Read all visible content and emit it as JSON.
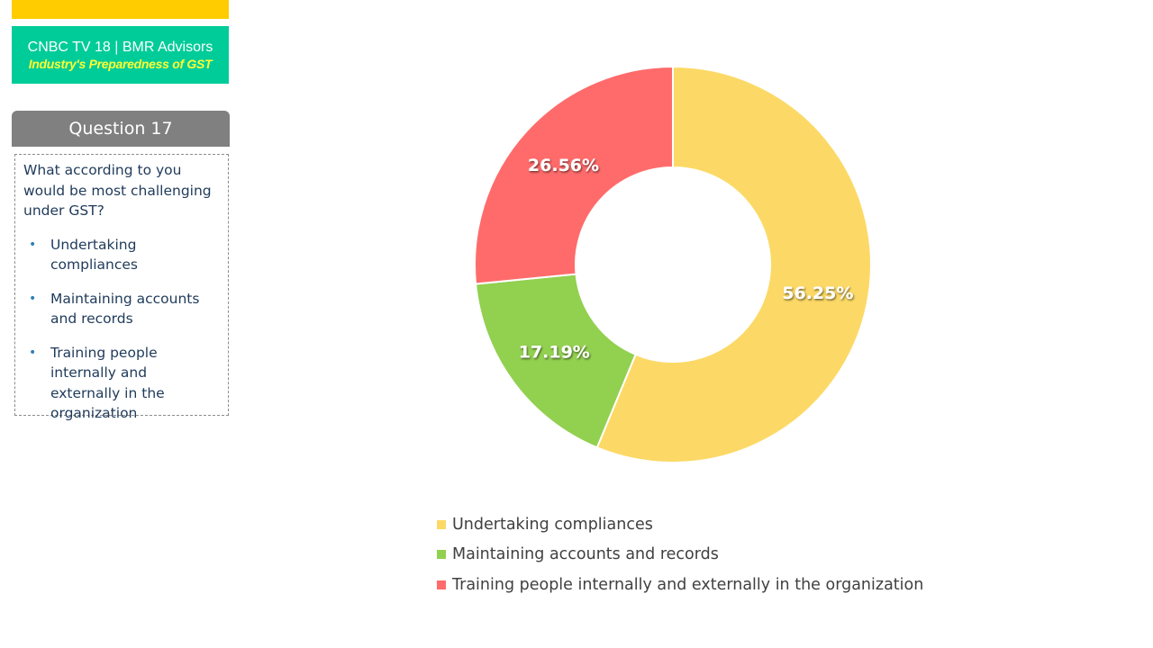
{
  "header": {
    "brand_title": "CNBC TV 18 | BMR Advisors",
    "brand_subtitle": "Industry's Preparedness of GST"
  },
  "question": {
    "label": "Question 17",
    "text": "What according to you would be most challenging under GST?",
    "options": [
      "Undertaking compliances",
      "Maintaining accounts and records",
      "Training people internally and externally in the organization"
    ]
  },
  "colors": {
    "yellow": "#fcd966",
    "green": "#92d050",
    "red": "#ff6b6b"
  },
  "chart_data": {
    "type": "pie",
    "subtype": "donut",
    "categories": [
      "Undertaking compliances",
      "Maintaining accounts and records",
      "Training people internally and externally in the organization"
    ],
    "values": [
      56.25,
      17.19,
      26.56
    ],
    "data_labels": [
      "56.25%",
      "17.19%",
      "26.56%"
    ],
    "colors": [
      "#fcd966",
      "#92d050",
      "#ff6b6b"
    ],
    "legend_position": "bottom"
  }
}
